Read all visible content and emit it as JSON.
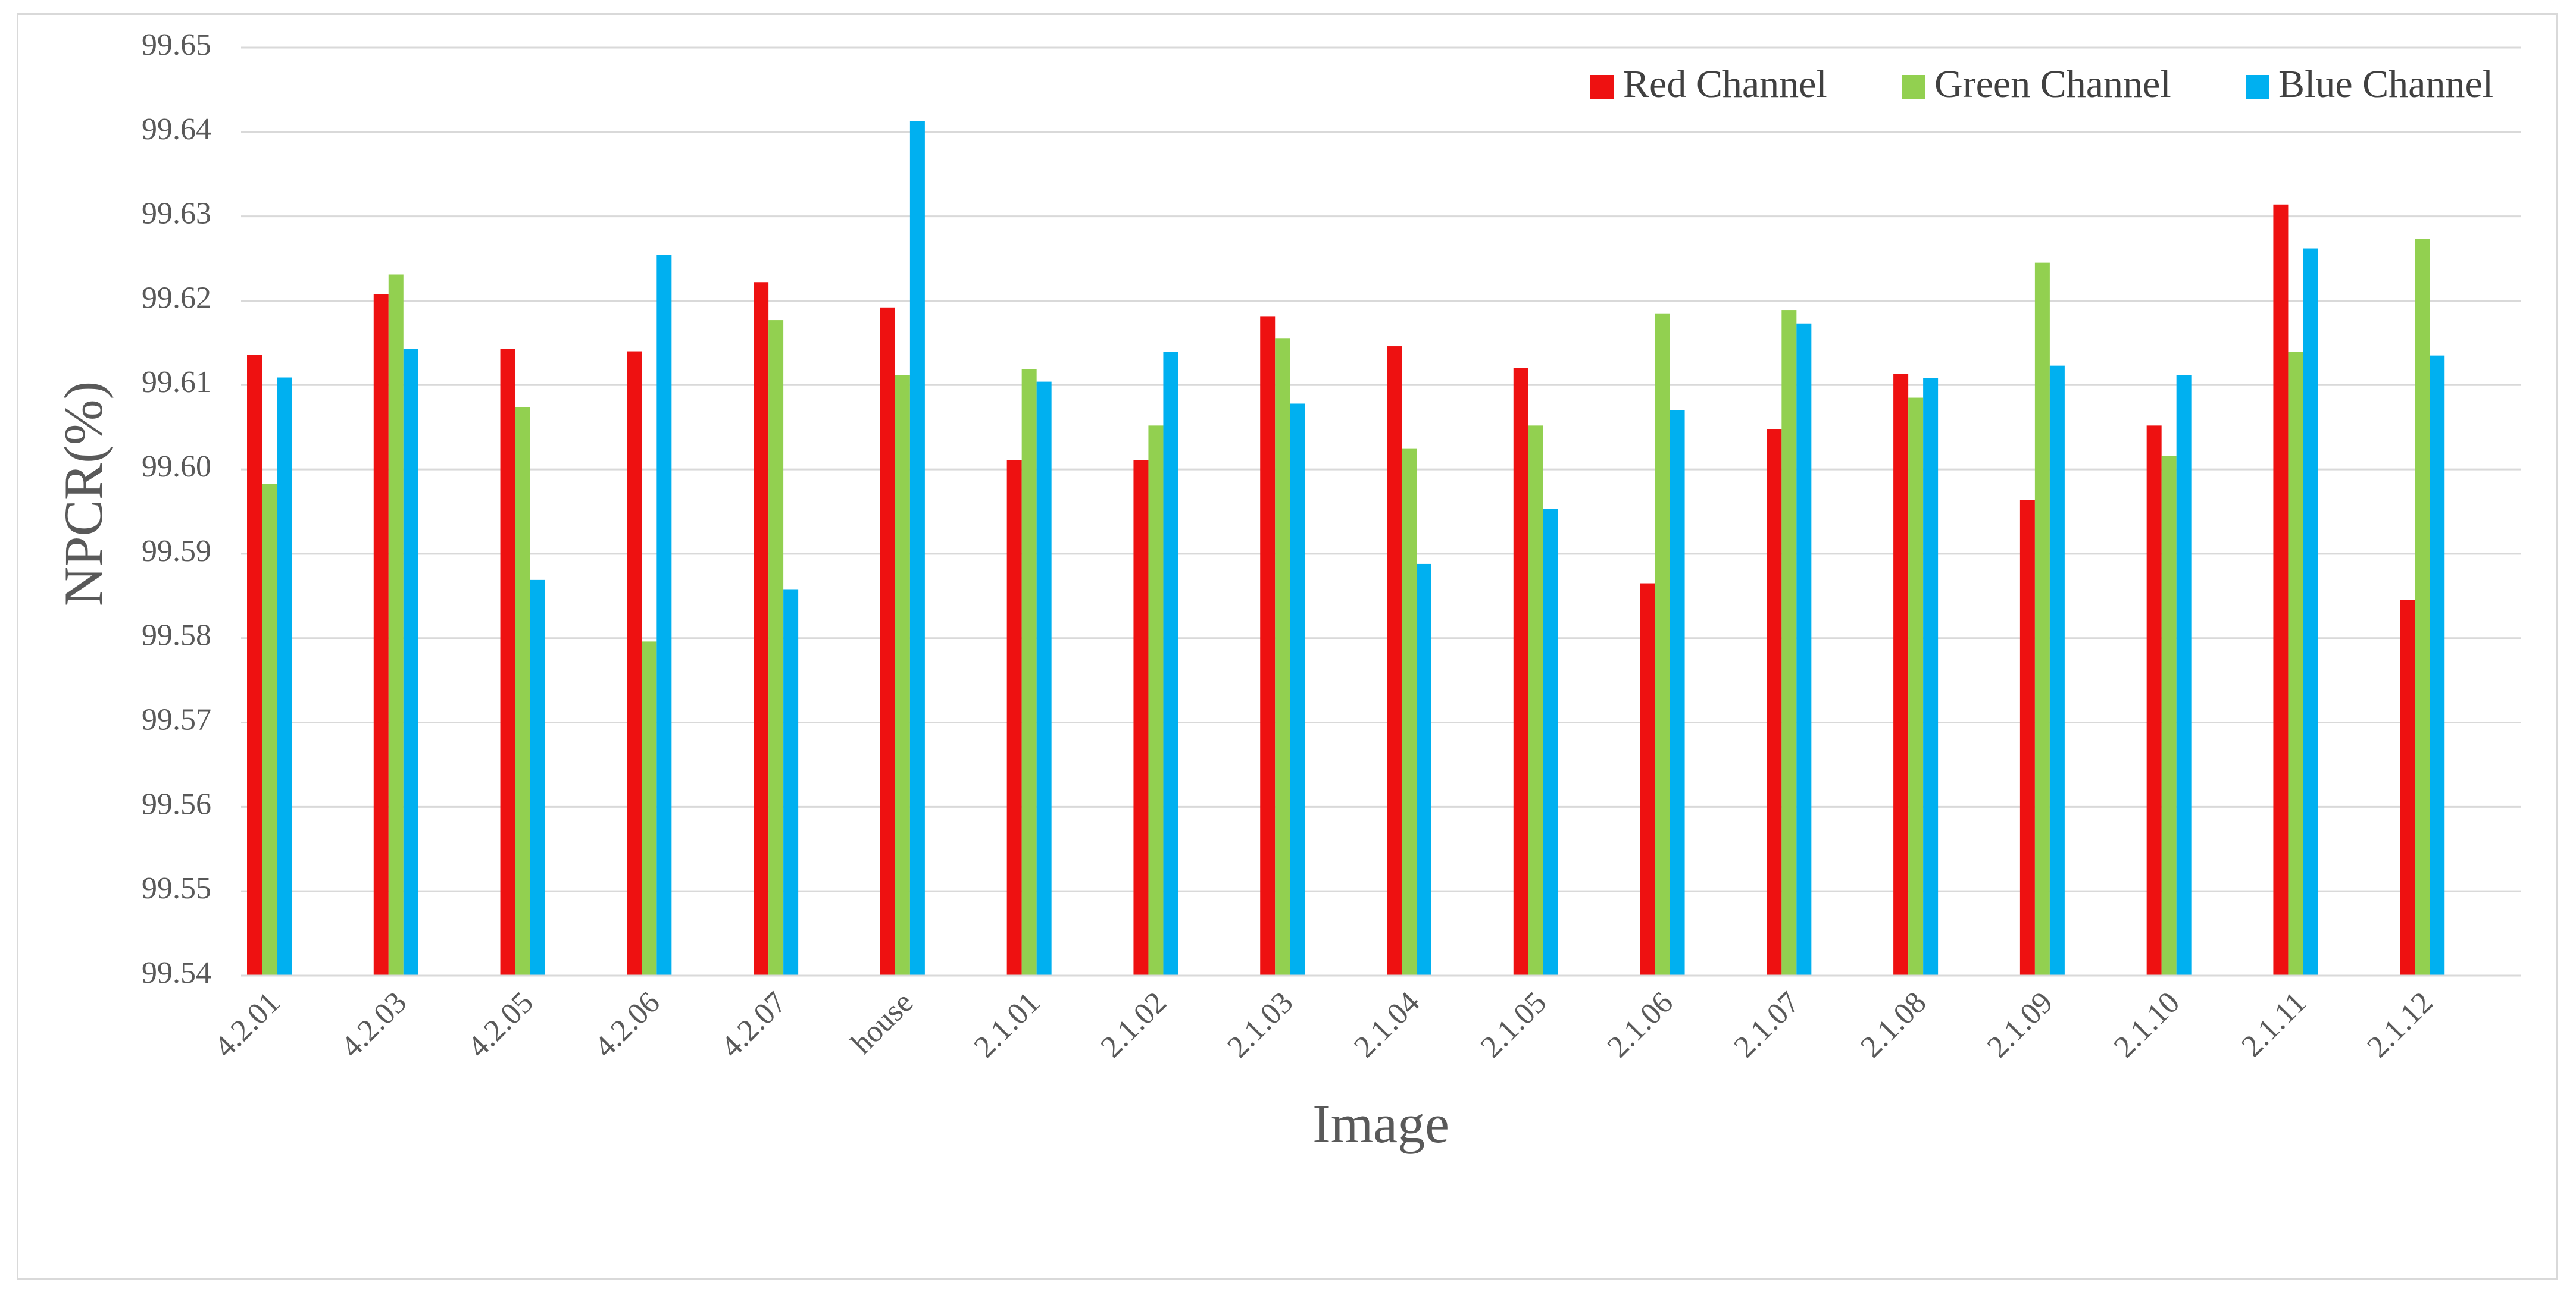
{
  "chart_data": {
    "type": "bar",
    "title": "",
    "xlabel": "Image",
    "ylabel": "NPCR(%)",
    "ylim": [
      99.54,
      99.65
    ],
    "yticks": [
      "99.54",
      "99.55",
      "99.56",
      "99.57",
      "99.58",
      "99.59",
      "99.60",
      "99.61",
      "99.62",
      "99.63",
      "99.64",
      "99.65"
    ],
    "grid": true,
    "legend_position": "top-right",
    "categories": [
      "4.2.01",
      "4.2.03",
      "4.2.05",
      "4.2.06",
      "4.2.07",
      "house",
      "2.1.01",
      "2.1.02",
      "2.1.03",
      "2.1.04",
      "2.1.05",
      "2.1.06",
      "2.1.07",
      "2.1.08",
      "2.1.09",
      "2.1.10",
      "2.1.11",
      "2.1.12"
    ],
    "series": [
      {
        "name": "Red Channel",
        "color": "#ee1111",
        "values": [
          99.6136,
          99.6208,
          99.6143,
          99.614,
          99.6222,
          99.6192,
          99.6011,
          99.6011,
          99.6181,
          99.6146,
          99.612,
          99.5865,
          99.6048,
          99.6113,
          99.5964,
          99.6052,
          99.6314,
          99.5845
        ]
      },
      {
        "name": "Green Channel",
        "color": "#92d050",
        "values": [
          99.5983,
          99.6231,
          99.6074,
          99.5796,
          99.6177,
          99.6112,
          99.6119,
          99.6052,
          99.6155,
          99.6025,
          99.6052,
          99.6185,
          99.6189,
          99.6085,
          99.6245,
          99.6016,
          99.6139,
          99.6273
        ]
      },
      {
        "name": "Blue Channel",
        "color": "#00b0f0",
        "values": [
          99.6109,
          99.6143,
          99.5869,
          99.6254,
          99.5858,
          99.6413,
          99.6104,
          99.6139,
          99.6078,
          99.5888,
          99.5953,
          99.607,
          99.6173,
          99.6108,
          99.6123,
          99.6112,
          99.6262,
          99.6135
        ]
      }
    ]
  },
  "colors": {
    "grid": "#d9d9d9",
    "axis": "#d9d9d9",
    "text": "#595959",
    "frame": "#d9d9d9"
  }
}
